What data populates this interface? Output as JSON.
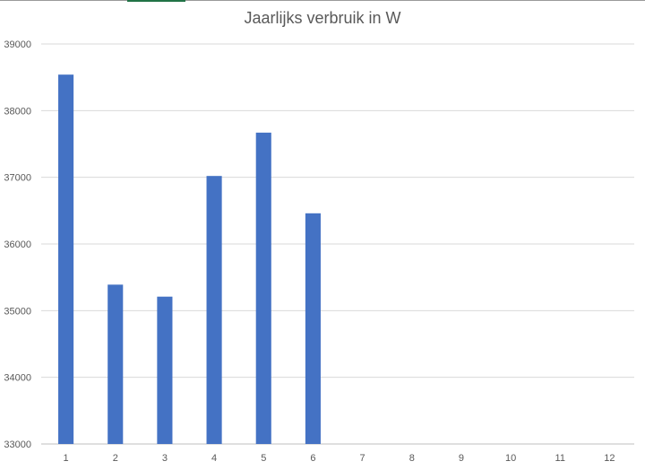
{
  "chart_data": {
    "type": "bar",
    "title": "Jaarlijks verbruik in W",
    "categories": [
      "1",
      "2",
      "3",
      "4",
      "5",
      "6",
      "7",
      "8",
      "9",
      "10",
      "11",
      "12"
    ],
    "values": [
      38540,
      35390,
      35210,
      37020,
      37670,
      36460,
      null,
      null,
      null,
      null,
      null,
      null
    ],
    "ylim": [
      33000,
      39000
    ],
    "yticks": [
      33000,
      34000,
      35000,
      36000,
      37000,
      38000,
      39000
    ],
    "grid": true,
    "legend": "none",
    "bar_color": "#4472C4",
    "grid_color": "#d9d9d9"
  }
}
